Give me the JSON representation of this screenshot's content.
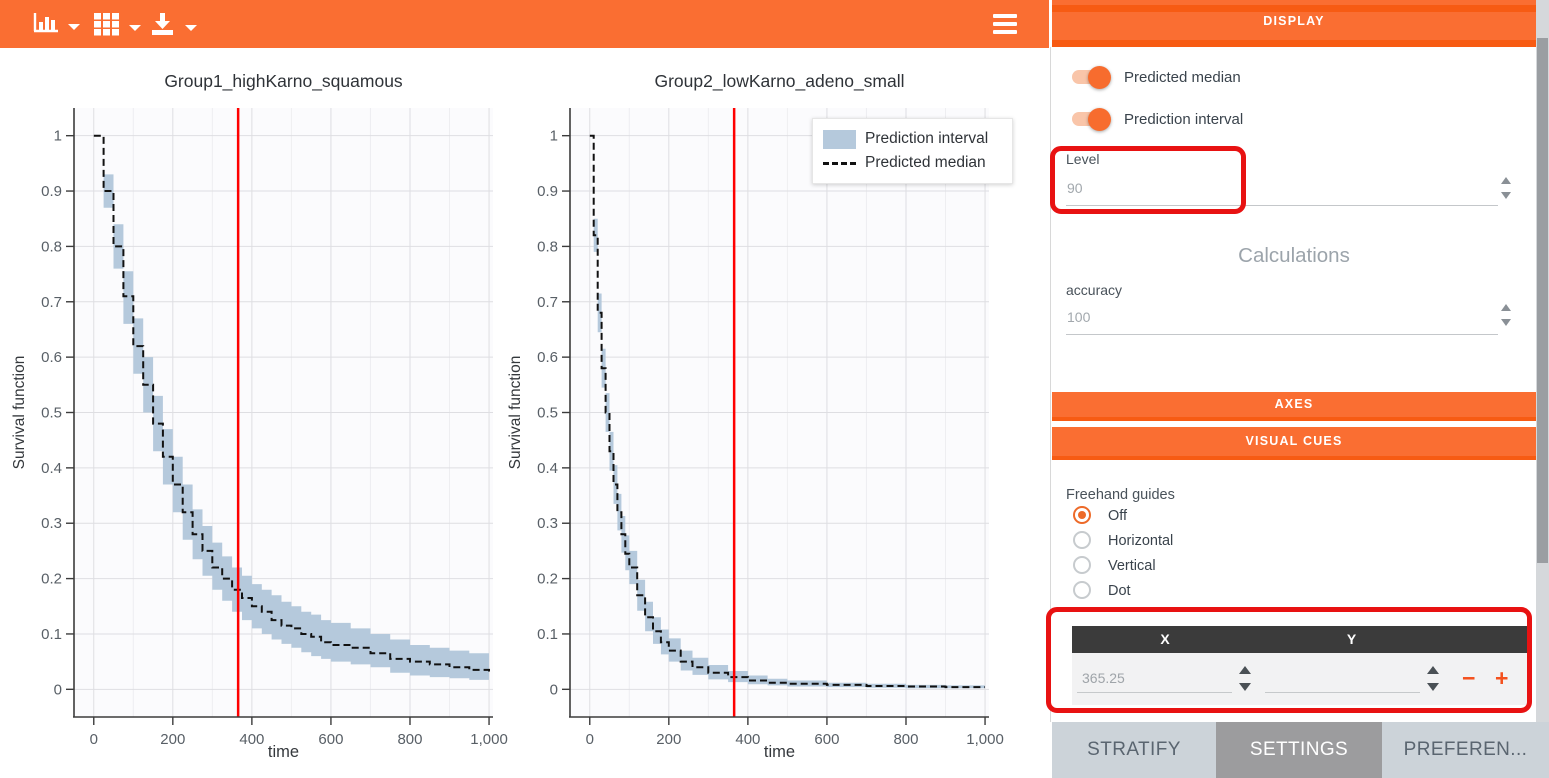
{
  "toolbar": {
    "buttons": [
      {
        "name": "chart-type-button",
        "icon": "bar-chart-icon",
        "has_dropdown": true
      },
      {
        "name": "layout-grid-button",
        "icon": "grid-icon",
        "has_dropdown": true
      },
      {
        "name": "download-button",
        "icon": "download-icon",
        "has_dropdown": true
      }
    ],
    "menu_icon": "hamburger-icon"
  },
  "legend": {
    "items": [
      {
        "label": "Prediction interval",
        "swatch": "band"
      },
      {
        "label": "Predicted median",
        "swatch": "dashed-line"
      }
    ]
  },
  "panel": {
    "display_header": "DISPLAY",
    "toggles": [
      {
        "label": "Predicted median",
        "on": true
      },
      {
        "label": "Prediction interval",
        "on": true
      }
    ],
    "level": {
      "label": "Level",
      "value": "90"
    },
    "calculations": {
      "heading": "Calculations",
      "accuracy_label": "accuracy",
      "accuracy_value": "100"
    },
    "sections": {
      "axes": "AXES",
      "visual_cues": "VISUAL CUES"
    },
    "freehand": {
      "label": "Freehand guides",
      "options": [
        "Off",
        "Horizontal",
        "Vertical",
        "Dot"
      ],
      "selected": "Off"
    },
    "xy_table": {
      "columns": [
        "X",
        "Y"
      ],
      "x_value": "365.25",
      "y_value": "",
      "remove_label": "−",
      "add_label": "+"
    },
    "tabs": [
      {
        "label": "STRATIFY",
        "active": false
      },
      {
        "label": "SETTINGS",
        "active": true
      },
      {
        "label": "PREFEREN...",
        "active": false
      }
    ]
  },
  "colors": {
    "accent_orange": "#FA6E32",
    "accent_orange_dark": "#F75B13",
    "band_blue": "#B5C9DC",
    "vline_red": "#FF0000",
    "annotation_red": "#E81212",
    "tab_bar_bg": "#CCD3D9",
    "tab_active_bg": "#9C9C9E",
    "table_header_bg": "#3B3B3B"
  },
  "chart_data": [
    {
      "type": "area",
      "name": "survival-chart-group1",
      "title": "Group1_highKarno_squamous",
      "xlabel": "time",
      "ylabel": "Survival function",
      "xlim": [
        -50,
        1010
      ],
      "ylim": [
        -0.05,
        1.05
      ],
      "xticks": [
        0,
        200,
        400,
        600,
        800,
        1000
      ],
      "xtick_labels": [
        "0",
        "200",
        "400",
        "600",
        "800",
        "1,000"
      ],
      "yticks": [
        0,
        0.1,
        0.2,
        0.3,
        0.4,
        0.5,
        0.6,
        0.7,
        0.8,
        0.9,
        1
      ],
      "ytick_labels": [
        "0",
        "0.1",
        "0.2",
        "0.3",
        "0.4",
        "0.5",
        "0.6",
        "0.7",
        "0.8",
        "0.9",
        "1"
      ],
      "grid": true,
      "vline_x": 365.25,
      "series": [
        {
          "name": "Predicted median",
          "style": "black-dashed-step"
        },
        {
          "name": "Prediction interval",
          "style": "blue-band"
        }
      ],
      "points_format": [
        "time",
        "median",
        "lower",
        "upper"
      ],
      "points": [
        [
          0,
          1.0,
          1.0,
          1.0
        ],
        [
          25,
          0.9,
          0.87,
          0.93
        ],
        [
          50,
          0.8,
          0.76,
          0.84
        ],
        [
          75,
          0.71,
          0.66,
          0.755
        ],
        [
          100,
          0.62,
          0.57,
          0.67
        ],
        [
          125,
          0.55,
          0.5,
          0.6
        ],
        [
          150,
          0.48,
          0.43,
          0.53
        ],
        [
          175,
          0.42,
          0.37,
          0.47
        ],
        [
          200,
          0.37,
          0.32,
          0.42
        ],
        [
          225,
          0.32,
          0.27,
          0.37
        ],
        [
          250,
          0.28,
          0.235,
          0.325
        ],
        [
          275,
          0.25,
          0.205,
          0.295
        ],
        [
          300,
          0.22,
          0.18,
          0.265
        ],
        [
          325,
          0.2,
          0.16,
          0.24
        ],
        [
          350,
          0.18,
          0.14,
          0.22
        ],
        [
          375,
          0.165,
          0.125,
          0.205
        ],
        [
          400,
          0.15,
          0.11,
          0.19
        ],
        [
          425,
          0.14,
          0.1,
          0.18
        ],
        [
          450,
          0.125,
          0.09,
          0.17
        ],
        [
          475,
          0.115,
          0.082,
          0.158
        ],
        [
          500,
          0.11,
          0.075,
          0.15
        ],
        [
          525,
          0.1,
          0.067,
          0.14
        ],
        [
          550,
          0.095,
          0.06,
          0.135
        ],
        [
          575,
          0.085,
          0.055,
          0.125
        ],
        [
          600,
          0.08,
          0.05,
          0.12
        ],
        [
          650,
          0.075,
          0.045,
          0.11
        ],
        [
          700,
          0.065,
          0.04,
          0.1
        ],
        [
          750,
          0.055,
          0.03,
          0.09
        ],
        [
          800,
          0.05,
          0.025,
          0.08
        ],
        [
          850,
          0.045,
          0.022,
          0.075
        ],
        [
          900,
          0.04,
          0.02,
          0.07
        ],
        [
          950,
          0.035,
          0.017,
          0.065
        ],
        [
          1000,
          0.03,
          0.015,
          0.06
        ]
      ]
    },
    {
      "type": "area",
      "name": "survival-chart-group2",
      "title": "Group2_lowKarno_adeno_small",
      "xlabel": "time",
      "ylabel": "Survival function",
      "xlim": [
        -50,
        1010
      ],
      "ylim": [
        -0.05,
        1.05
      ],
      "xticks": [
        0,
        200,
        400,
        600,
        800,
        1000
      ],
      "xtick_labels": [
        "0",
        "200",
        "400",
        "600",
        "800",
        "1,000"
      ],
      "yticks": [
        0,
        0.1,
        0.2,
        0.3,
        0.4,
        0.5,
        0.6,
        0.7,
        0.8,
        0.9,
        1
      ],
      "ytick_labels": [
        "0",
        "0.1",
        "0.2",
        "0.3",
        "0.4",
        "0.5",
        "0.6",
        "0.7",
        "0.8",
        "0.9",
        "1"
      ],
      "grid": true,
      "vline_x": 365.25,
      "series": [
        {
          "name": "Predicted median",
          "style": "black-dashed-step"
        },
        {
          "name": "Prediction interval",
          "style": "blue-band"
        }
      ],
      "points_format": [
        "time",
        "median",
        "lower",
        "upper"
      ],
      "points": [
        [
          0,
          1.0,
          1.0,
          1.0
        ],
        [
          10,
          0.82,
          0.79,
          0.85
        ],
        [
          20,
          0.68,
          0.645,
          0.715
        ],
        [
          30,
          0.58,
          0.545,
          0.615
        ],
        [
          40,
          0.5,
          0.465,
          0.535
        ],
        [
          50,
          0.43,
          0.395,
          0.465
        ],
        [
          60,
          0.37,
          0.335,
          0.405
        ],
        [
          70,
          0.32,
          0.287,
          0.353
        ],
        [
          80,
          0.28,
          0.247,
          0.313
        ],
        [
          90,
          0.245,
          0.215,
          0.278
        ],
        [
          100,
          0.22,
          0.19,
          0.25
        ],
        [
          120,
          0.17,
          0.142,
          0.198
        ],
        [
          140,
          0.13,
          0.105,
          0.158
        ],
        [
          160,
          0.105,
          0.082,
          0.13
        ],
        [
          180,
          0.085,
          0.063,
          0.108
        ],
        [
          200,
          0.07,
          0.05,
          0.092
        ],
        [
          230,
          0.05,
          0.034,
          0.07
        ],
        [
          260,
          0.04,
          0.026,
          0.057
        ],
        [
          300,
          0.03,
          0.018,
          0.044
        ],
        [
          350,
          0.022,
          0.013,
          0.033
        ],
        [
          400,
          0.016,
          0.009,
          0.025
        ],
        [
          450,
          0.012,
          0.007,
          0.019
        ],
        [
          500,
          0.01,
          0.005,
          0.016
        ],
        [
          600,
          0.008,
          0.004,
          0.012
        ],
        [
          700,
          0.006,
          0.003,
          0.01
        ],
        [
          800,
          0.005,
          0.002,
          0.008
        ],
        [
          900,
          0.004,
          0.002,
          0.007
        ],
        [
          1000,
          0.004,
          0.002,
          0.006
        ]
      ]
    }
  ]
}
